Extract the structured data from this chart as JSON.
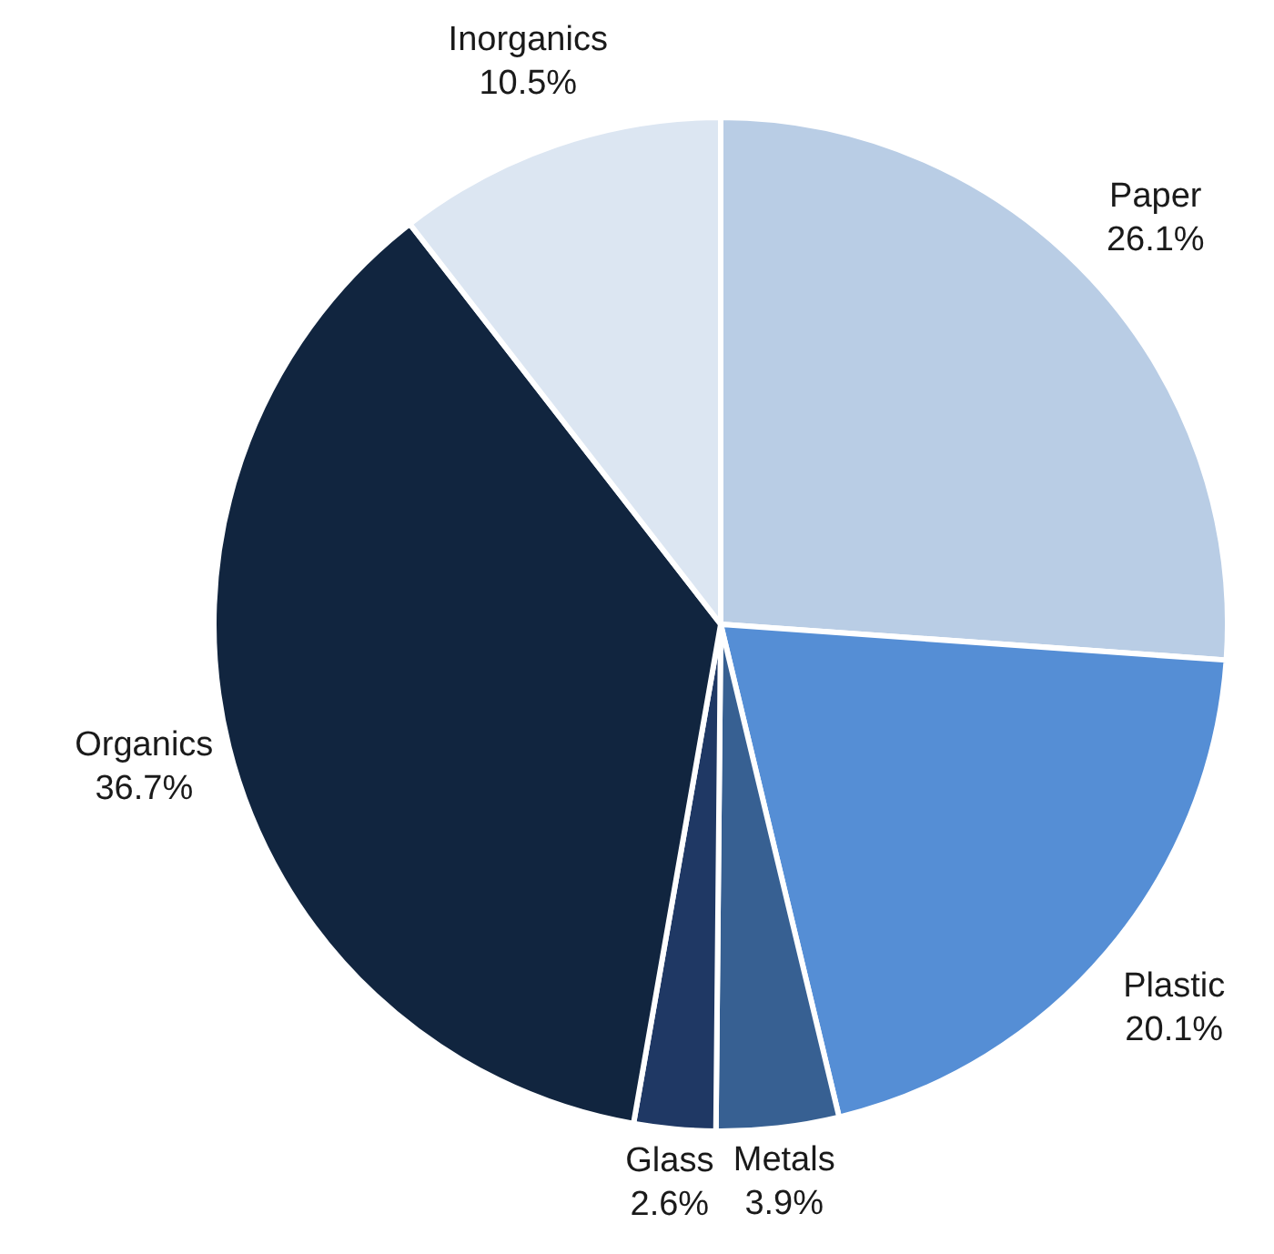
{
  "chart_data": {
    "type": "pie",
    "categories": [
      "Paper",
      "Plastic",
      "Metals",
      "Glass",
      "Organics",
      "Inorganics"
    ],
    "values": [
      26.1,
      20.1,
      3.9,
      2.6,
      36.7,
      10.5
    ],
    "colors": [
      "#b9cde5",
      "#558ed5",
      "#376092",
      "#1f3864",
      "#11253f",
      "#dce6f2"
    ],
    "value_labels": [
      "26.1%",
      "20.1%",
      "3.9%",
      "2.6%",
      "36.7%",
      "10.5%"
    ]
  }
}
